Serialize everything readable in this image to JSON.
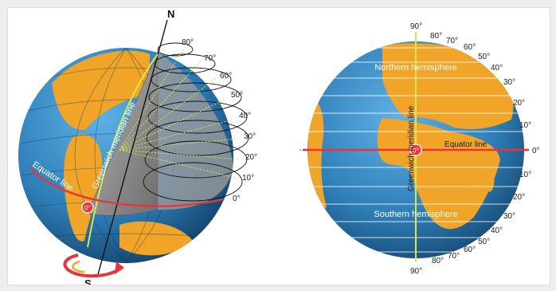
{
  "left_globe": {
    "north_label": "N",
    "south_label": "S",
    "greenwich_label": "Greenwich meridian line",
    "equator_label": "Equator line",
    "origin_label": "0°",
    "latitude_labels": [
      "80°",
      "70°",
      "60°",
      "50°",
      "40°",
      "30°",
      "20°",
      "10°",
      "0°"
    ]
  },
  "right_globe": {
    "northern_label": "Northern hemisphere",
    "southern_label": "Southern hemisphere",
    "meridian_label": "Greenwich meridian line",
    "equator_label": "Equator line",
    "origin_label": "0°",
    "equator_degree": "0°",
    "top_label": "90°",
    "bottom_label": "90°",
    "north_latitudes": [
      "80°",
      "70°",
      "60°",
      "50°",
      "40°",
      "30°",
      "20°",
      "10°"
    ],
    "south_latitudes": [
      "10°",
      "20°",
      "30°",
      "40°",
      "50°",
      "60°",
      "70°",
      "80°"
    ]
  },
  "colors": {
    "ocean": "#2e7fb8",
    "land": "#f0a428",
    "equator": "#e8343a",
    "meridian": "#d7e94a",
    "cutaway": "#8f8f8f"
  }
}
